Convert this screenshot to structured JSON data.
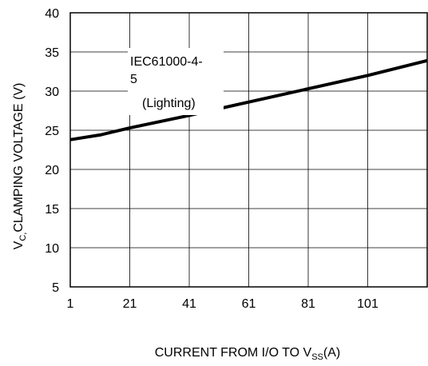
{
  "chart_data": {
    "type": "line",
    "xlabel": "CURRENT FROM I/O TO V",
    "xlabel_sub": "SS",
    "xlabel_tail": "(A)",
    "ylabel_main": "V",
    "ylabel_sub": "C,",
    "ylabel_tail": "CLAMPING VOLTAGE (V)",
    "xlim": [
      1,
      121
    ],
    "ylim": [
      5,
      40
    ],
    "x_ticks": [
      1,
      21,
      41,
      61,
      81,
      101
    ],
    "y_ticks": [
      5,
      10,
      15,
      20,
      25,
      30,
      35,
      40
    ],
    "grid": true,
    "annotation": [
      "IEC61000-4-",
      "5",
      "(Lighting)"
    ],
    "series": [
      {
        "color": "#000000",
        "x": [
          1,
          6,
          11,
          21,
          41,
          61,
          81,
          101,
          121
        ],
        "y": [
          23.8,
          24.1,
          24.4,
          25.3,
          26.9,
          28.6,
          30.3,
          32.0,
          33.9
        ]
      }
    ]
  }
}
